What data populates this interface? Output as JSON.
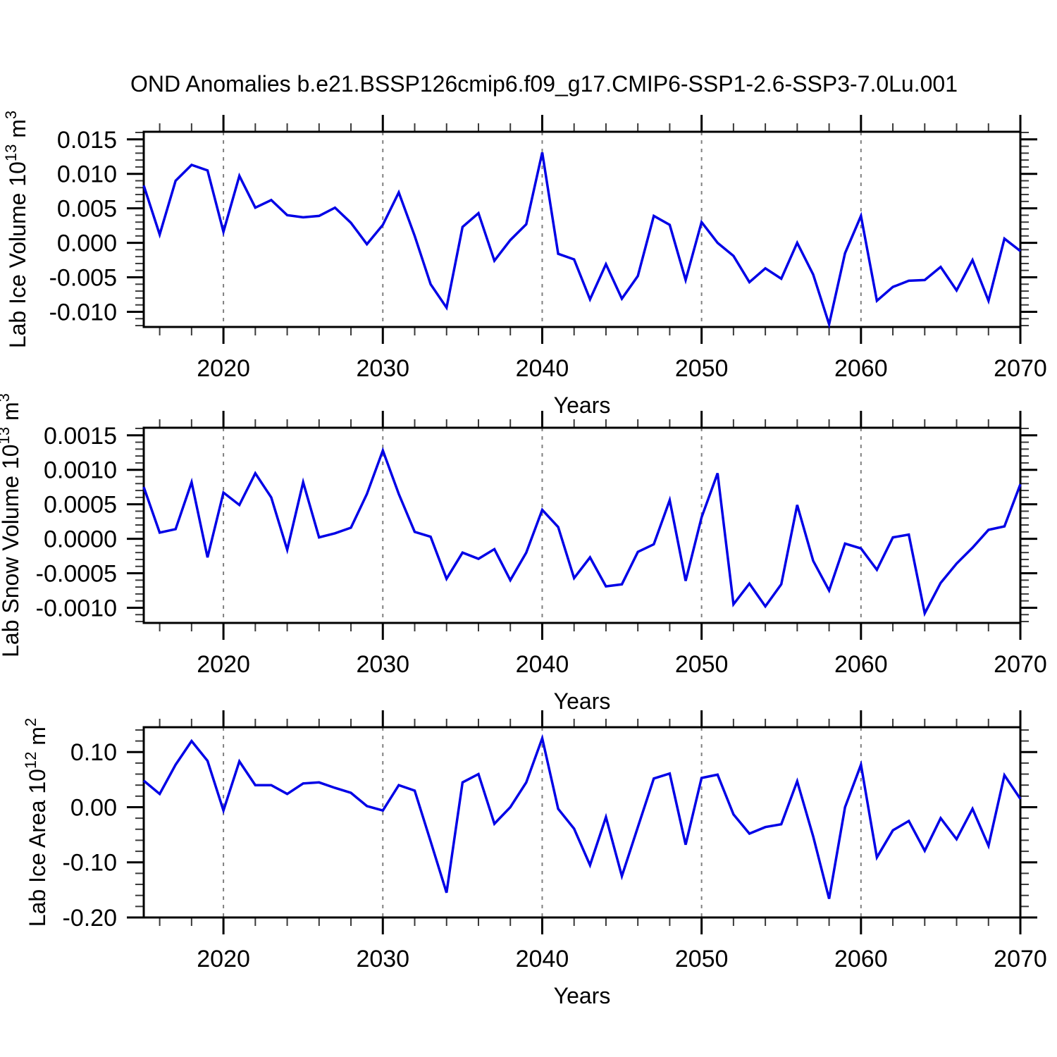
{
  "title": "OND Anomalies b.e21.BSSP126cmip6.f09_g17.CMIP6-SSP1-2.6-SSP3-7.0Lu.001",
  "colors": {
    "line": "#0000e6",
    "grid": "#808080",
    "frame": "#000000"
  },
  "years": [
    2015,
    2016,
    2017,
    2018,
    2019,
    2020,
    2021,
    2022,
    2023,
    2024,
    2025,
    2026,
    2027,
    2028,
    2029,
    2030,
    2031,
    2032,
    2033,
    2034,
    2035,
    2036,
    2037,
    2038,
    2039,
    2040,
    2041,
    2042,
    2043,
    2044,
    2045,
    2046,
    2047,
    2048,
    2049,
    2050,
    2051,
    2052,
    2053,
    2054,
    2055,
    2056,
    2057,
    2058,
    2059,
    2060,
    2061,
    2062,
    2063,
    2064,
    2065,
    2066,
    2067,
    2068,
    2069,
    2070
  ],
  "x_axis": {
    "label": "Years",
    "range": [
      2015,
      2070
    ],
    "ticks": [
      2020,
      2030,
      2040,
      2050,
      2060,
      2070
    ],
    "minor_step": 2,
    "gridline_years": [
      2020,
      2030,
      2040,
      2050,
      2060
    ]
  },
  "chart_data": [
    {
      "type": "line",
      "id": "ice-volume",
      "title": "Lab Ice Volume 10^13 m^3",
      "ylabel_parts": [
        {
          "t": "Lab Ice Volume 10"
        },
        {
          "t": "13",
          "sup": true
        },
        {
          "t": " m"
        },
        {
          "t": "3",
          "sup": true
        }
      ],
      "ylim": [
        -0.0122,
        0.0161
      ],
      "ytick_values": [
        0.015,
        0.01,
        0.005,
        0.0,
        -0.005,
        -0.01
      ],
      "ytick_labels": [
        "0.015",
        "0.010",
        "0.005",
        "0.000",
        "-0.005",
        "-0.010"
      ],
      "yminor_step": 0.001,
      "values": [
        0.0083,
        0.0012,
        0.009,
        0.0113,
        0.0105,
        0.0016,
        0.0097,
        0.0051,
        0.0062,
        0.004,
        0.0037,
        0.0039,
        0.0051,
        0.0029,
        -0.0002,
        0.0026,
        0.0073,
        0.001,
        -0.006,
        -0.0094,
        0.0023,
        0.0043,
        -0.0026,
        0.0004,
        0.0027,
        0.0131,
        -0.0016,
        -0.0024,
        -0.0082,
        -0.0031,
        -0.0081,
        -0.0048,
        0.0039,
        0.0026,
        -0.0054,
        0.003,
        0.0,
        -0.0019,
        -0.0057,
        -0.0037,
        -0.0052,
        0.0,
        -0.0046,
        -0.0118,
        -0.0015,
        0.0039,
        -0.0084,
        -0.0064,
        -0.0055,
        -0.0054,
        -0.0035,
        -0.0069,
        -0.0025,
        -0.0084,
        0.0006,
        -0.0012
      ]
    },
    {
      "type": "line",
      "id": "snow-volume",
      "title": "Lab Snow Volume 10^13 m^3",
      "ylabel_parts": [
        {
          "t": "Lab Snow Volume 10"
        },
        {
          "t": "13",
          "sup": true
        },
        {
          "t": " m"
        },
        {
          "t": "3",
          "sup": true
        }
      ],
      "ylim": [
        -0.00122,
        0.00161
      ],
      "ytick_values": [
        0.0015,
        0.001,
        0.0005,
        0.0,
        -0.0005,
        -0.001
      ],
      "ytick_labels": [
        "0.0015",
        "0.0010",
        "0.0005",
        "0.0000",
        "-0.0005",
        "-0.0010"
      ],
      "yminor_step": 0.0001,
      "values": [
        0.00075,
        9e-05,
        0.00014,
        0.00082,
        -0.00027,
        0.00067,
        0.00049,
        0.00095,
        0.0006,
        -0.00016,
        0.00082,
        2e-05,
        8e-05,
        0.00016,
        0.00065,
        0.00128,
        0.00065,
        0.0001,
        3e-05,
        -0.00058,
        -0.0002,
        -0.00029,
        -0.00015,
        -0.0006,
        -0.0002,
        0.00042,
        0.00017,
        -0.00057,
        -0.00027,
        -0.00069,
        -0.00066,
        -0.00019,
        -8e-05,
        0.00056,
        -0.00061,
        0.00031,
        0.00095,
        -0.00095,
        -0.00065,
        -0.00098,
        -0.00066,
        0.00049,
        -0.00032,
        -0.00075,
        -7e-05,
        -0.00014,
        -0.00045,
        2e-05,
        6e-05,
        -0.00108,
        -0.00064,
        -0.00036,
        -0.00013,
        0.00013,
        0.00018,
        0.00079
      ]
    },
    {
      "type": "line",
      "id": "ice-area",
      "title": "Lab Ice Area 10^12 m^2",
      "ylabel_parts": [
        {
          "t": "Lab Ice Area 10"
        },
        {
          "t": "12",
          "sup": true
        },
        {
          "t": " m"
        },
        {
          "t": "2",
          "sup": true
        }
      ],
      "ylim": [
        -0.2,
        0.145
      ],
      "ytick_values": [
        0.1,
        0.0,
        -0.1,
        -0.2
      ],
      "ytick_labels": [
        "0.10",
        "0.00",
        "-0.10",
        "-0.20"
      ],
      "yminor_step": 0.02,
      "values": [
        0.048,
        0.024,
        0.077,
        0.12,
        0.084,
        -0.006,
        0.083,
        0.04,
        0.04,
        0.024,
        0.043,
        0.045,
        0.035,
        0.026,
        0.002,
        -0.006,
        0.04,
        0.03,
        -0.062,
        -0.155,
        0.045,
        0.06,
        -0.03,
        0.0,
        0.045,
        0.125,
        -0.003,
        -0.039,
        -0.105,
        -0.018,
        -0.125,
        -0.036,
        0.052,
        0.061,
        -0.068,
        0.053,
        0.059,
        -0.013,
        -0.048,
        -0.036,
        -0.031,
        0.047,
        -0.053,
        -0.166,
        0.0,
        0.077,
        -0.091,
        -0.042,
        -0.025,
        -0.079,
        -0.02,
        -0.058,
        -0.003,
        -0.07,
        0.058,
        0.015
      ]
    }
  ]
}
